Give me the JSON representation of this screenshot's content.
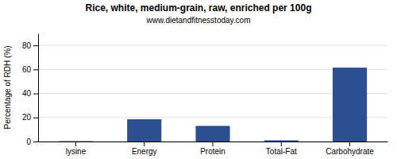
{
  "chart_data": {
    "type": "bar",
    "title": "Rice, white, medium-grain, raw, enriched per 100g",
    "subtitle": "www.dietandfitnesstoday.com",
    "categories": [
      "lysine",
      "Energy",
      "Protein",
      "Total-Fat",
      "Carbohydrate"
    ],
    "values": [
      0.3,
      18.5,
      13.0,
      1.0,
      61.5
    ],
    "color": "#2e4f8f",
    "ylabel": "Percentage of RDH (%)",
    "ylim": [
      0,
      90
    ],
    "yticks": [
      0,
      20,
      40,
      60,
      80
    ],
    "grid": true
  }
}
